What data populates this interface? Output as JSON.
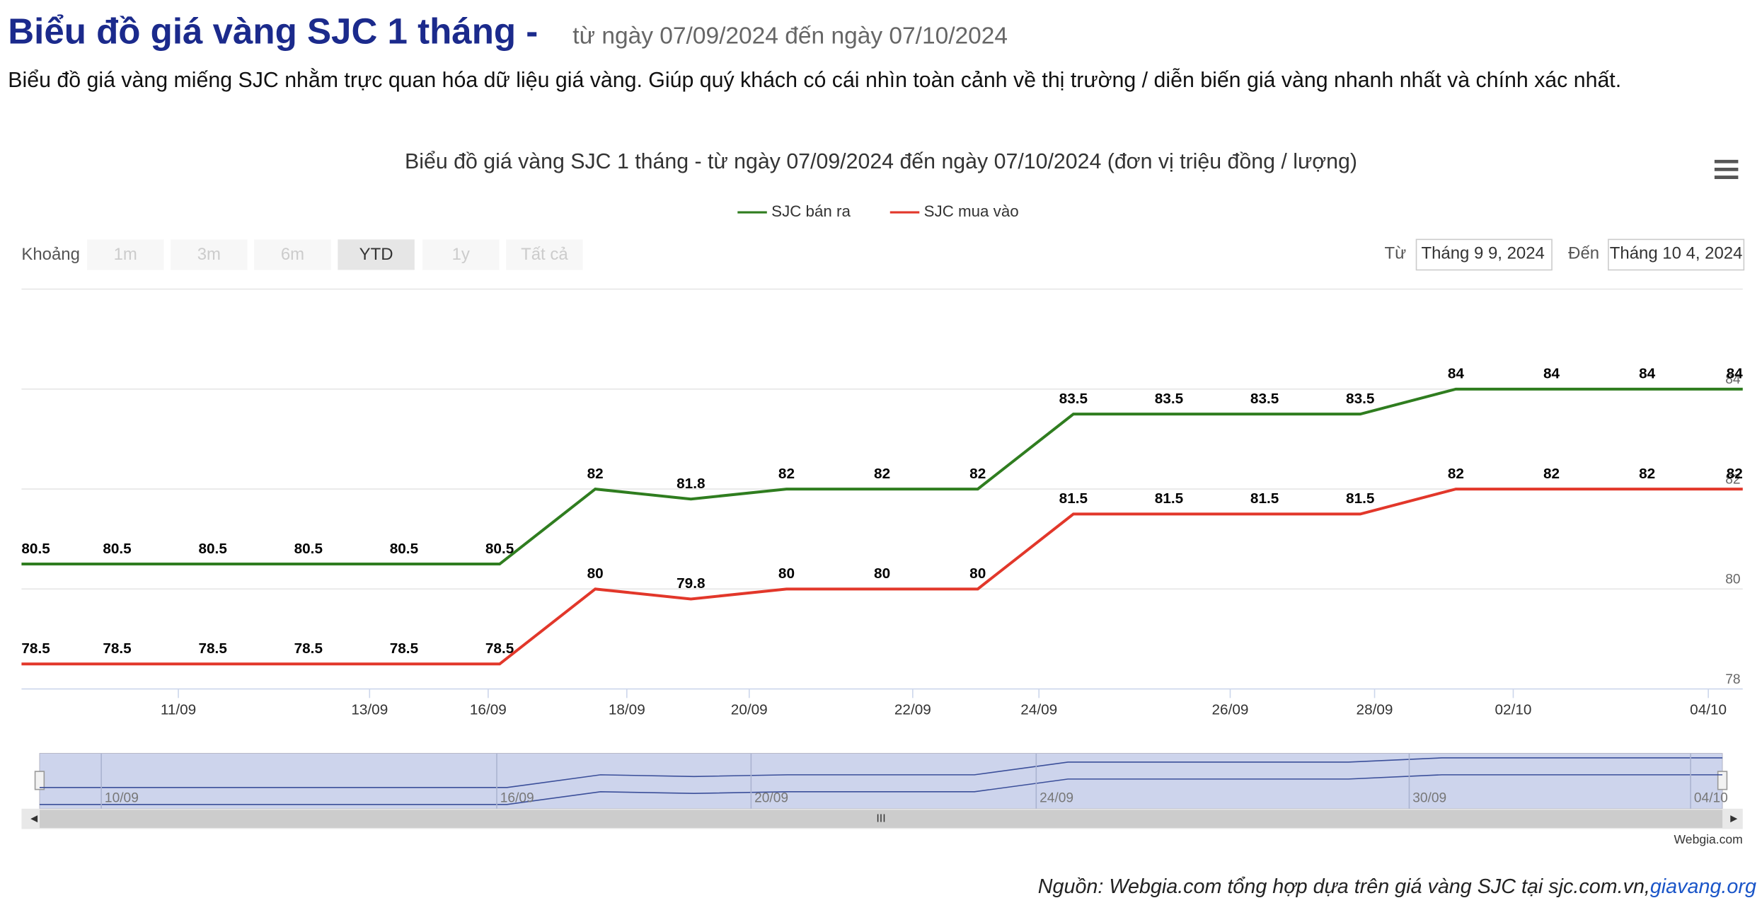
{
  "header": {
    "title": "Biểu đồ giá vàng SJC 1 tháng -",
    "subtitle": "từ ngày 07/09/2024 đến ngày 07/10/2024",
    "description": "Biểu đồ giá vàng miếng SJC nhằm trực quan hóa dữ liệu giá vàng. Giúp quý khách có cái nhìn toàn cảnh về thị trường / diễn biến giá vàng nhanh nhất và chính xác nhất."
  },
  "range_selector": {
    "label": "Khoảng",
    "buttons": [
      "1m",
      "3m",
      "6m",
      "YTD",
      "1y",
      "Tất cả"
    ],
    "from_label": "Từ",
    "from": "Tháng 9 9, 2024",
    "to_label": "Đến",
    "to": "Tháng 10 4, 2024"
  },
  "chart_data": {
    "type": "line",
    "title": "Biểu đồ giá vàng SJC 1 tháng - từ ngày 07/09/2024 đến ngày 07/10/2024 (đơn vị triệu đồng / lượng)",
    "categories": [
      null,
      null,
      null,
      null,
      null,
      null,
      null,
      null,
      null,
      null,
      null,
      null,
      null,
      null,
      null,
      null,
      null,
      null,
      null
    ],
    "series": [
      {
        "name": "SJC bán ra",
        "color": "#2f7d1f",
        "values": [
          80.5,
          80.5,
          80.5,
          80.5,
          80.5,
          80.5,
          82,
          81.8,
          82,
          82,
          82,
          83.5,
          83.5,
          83.5,
          83.5,
          84,
          84,
          84,
          84
        ]
      },
      {
        "name": "SJC mua vào",
        "color": "#e2372a",
        "values": [
          78.5,
          78.5,
          78.5,
          78.5,
          78.5,
          78.5,
          80,
          79.8,
          80,
          80,
          80,
          81.5,
          81.5,
          81.5,
          81.5,
          82,
          82,
          82,
          82
        ]
      }
    ],
    "xlim": [
      0,
      18
    ],
    "xticks": [
      {
        "value": 1.64,
        "label": "11/09"
      },
      {
        "value": 3.64,
        "label": "13/09"
      },
      {
        "value": 4.88,
        "label": "16/09"
      },
      {
        "value": 6.33,
        "label": "18/09"
      },
      {
        "value": 7.61,
        "label": "20/09"
      },
      {
        "value": 9.32,
        "label": "22/09"
      },
      {
        "value": 10.64,
        "label": "24/09"
      },
      {
        "value": 12.64,
        "label": "26/09"
      },
      {
        "value": 14.15,
        "label": "28/09"
      },
      {
        "value": 15.6,
        "label": "02/10"
      },
      {
        "value": 17.64,
        "label": "04/10"
      }
    ],
    "ylim": [
      78,
      86
    ],
    "yticks": [
      78,
      80,
      82,
      84
    ],
    "grid": true,
    "legend": "top",
    "navigator_ticks": [
      {
        "value": 0.66,
        "label": "10/09"
      },
      {
        "value": 4.89,
        "label": "16/09"
      },
      {
        "value": 7.61,
        "label": "20/09"
      },
      {
        "value": 10.66,
        "label": "24/09"
      },
      {
        "value": 14.65,
        "label": "30/09"
      },
      {
        "value": 17.66,
        "label": "04/10"
      }
    ],
    "credits": "Webgia.com"
  },
  "footer": {
    "source": "Nguồn: Webgia.com tổng hợp dựa trên giá vàng SJC tại sjc.com.vn,",
    "link": "giavang.org"
  }
}
